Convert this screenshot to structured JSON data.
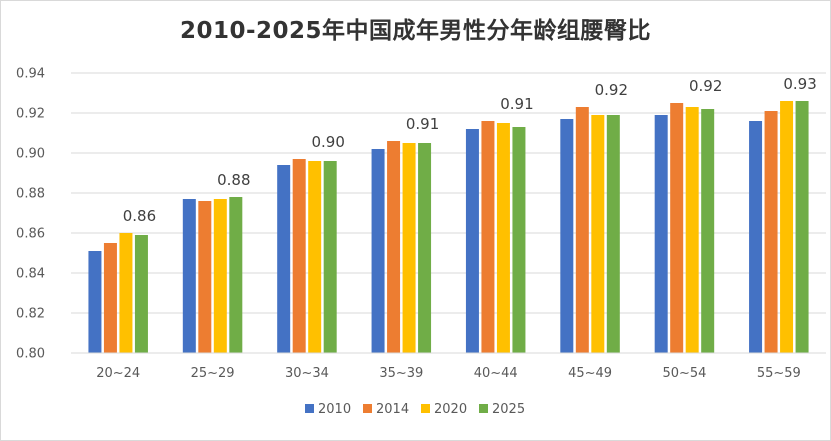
{
  "chart_data": {
    "type": "bar",
    "title": "2010-2025年中国成年男性分年龄组腰臀比",
    "categories": [
      "20~24",
      "25~29",
      "30~34",
      "35~39",
      "40~44",
      "45~49",
      "50~54",
      "55~59"
    ],
    "series": [
      {
        "name": "2010",
        "color": "#4472C4",
        "values": [
          0.851,
          0.877,
          0.894,
          0.902,
          0.912,
          0.917,
          0.919,
          0.916
        ]
      },
      {
        "name": "2014",
        "color": "#ED7D31",
        "values": [
          0.855,
          0.876,
          0.897,
          0.906,
          0.916,
          0.923,
          0.925,
          0.921
        ]
      },
      {
        "name": "2020",
        "color": "#FFC000",
        "values": [
          0.86,
          0.877,
          0.896,
          0.905,
          0.915,
          0.919,
          0.923,
          0.926
        ]
      },
      {
        "name": "2025",
        "color": "#70AD47",
        "values": [
          0.859,
          0.878,
          0.896,
          0.905,
          0.913,
          0.919,
          0.922,
          0.926
        ]
      }
    ],
    "data_labels": [
      "0.86",
      "0.88",
      "0.90",
      "0.91",
      "0.91",
      "0.92",
      "0.92",
      "0.93"
    ],
    "yticks": [
      "0.80",
      "0.82",
      "0.84",
      "0.86",
      "0.88",
      "0.90",
      "0.92",
      "0.94"
    ],
    "ylim": [
      0.8,
      0.94
    ],
    "grid": true,
    "legend_position": "bottom"
  }
}
